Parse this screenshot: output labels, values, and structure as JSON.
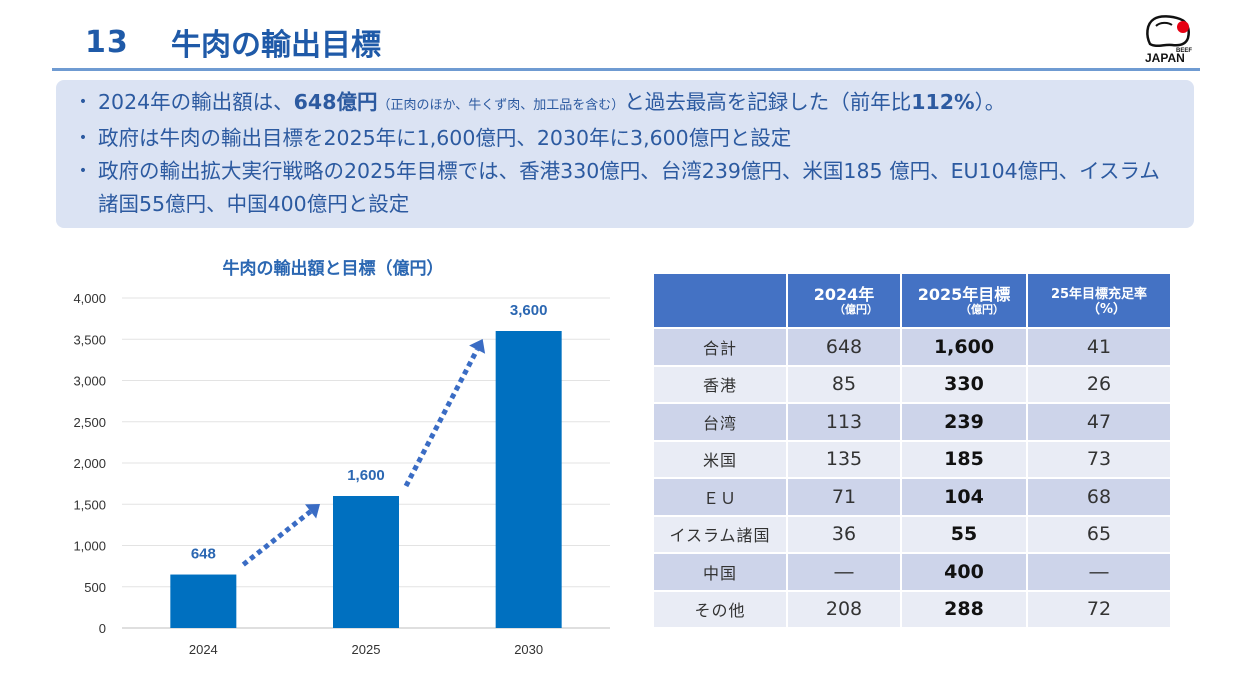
{
  "header": {
    "number": "13",
    "title": "牛肉の輸出目標",
    "logo_text": "JAPAN",
    "logo_small": "BEEF"
  },
  "bullets": [
    {
      "pre": "2024年の輸出額は、",
      "bold1": "648億円",
      "small": "（正肉のほか、牛くず肉、加工品を含む）",
      "mid": "と過去最高を記録した（前年比",
      "bold2": "112%",
      "post": "）。"
    },
    {
      "text": "政府は牛肉の輸出目標を2025年に1,600億円、2030年に3,600億円と設定"
    },
    {
      "text": "政府の輸出拡大実行戦略の2025年目標では、香港330億円、台湾239億円、米国185 億円、EU104億円、イスラム諸国55億円、中国400億円と設定"
    }
  ],
  "colors": {
    "bar": "#0070c0",
    "accent": "#1f5aa8",
    "arrow": "#3a6cc4",
    "header_bg": "#4472c4"
  },
  "chart_data": {
    "type": "bar",
    "title": "牛肉の輸出額と目標（億円）",
    "categories": [
      "2024",
      "2025",
      "2030"
    ],
    "values": [
      648,
      1600,
      3600
    ],
    "data_labels": [
      "648",
      "1,600",
      "3,600"
    ],
    "ylim": [
      0,
      4000
    ],
    "yticks": [
      0,
      500,
      1000,
      1500,
      2000,
      2500,
      3000,
      3500,
      4000
    ],
    "ytick_labels": [
      "0",
      "500",
      "1,000",
      "1,500",
      "2,000",
      "2,500",
      "3,000",
      "3,500",
      "4,000"
    ],
    "grid": true,
    "xlabel": "",
    "ylabel": ""
  },
  "table": {
    "headers": [
      {
        "main": "",
        "sub": ""
      },
      {
        "main": "2024年",
        "sub": "（億円）"
      },
      {
        "main": "2025年目標",
        "sub": "（億円）"
      },
      {
        "main": "25年目標充足率",
        "sub": "（%）"
      }
    ],
    "rows": [
      [
        "合計",
        "648",
        "1,600",
        "41"
      ],
      [
        "香港",
        "85",
        "330",
        "26"
      ],
      [
        "台湾",
        "113",
        "239",
        "47"
      ],
      [
        "米国",
        "135",
        "185",
        "73"
      ],
      [
        "ＥＵ",
        "71",
        "104",
        "68"
      ],
      [
        "イスラム諸国",
        "36",
        "55",
        "65"
      ],
      [
        "中国",
        "―",
        "400",
        "―"
      ],
      [
        "その他",
        "208",
        "288",
        "72"
      ]
    ]
  }
}
